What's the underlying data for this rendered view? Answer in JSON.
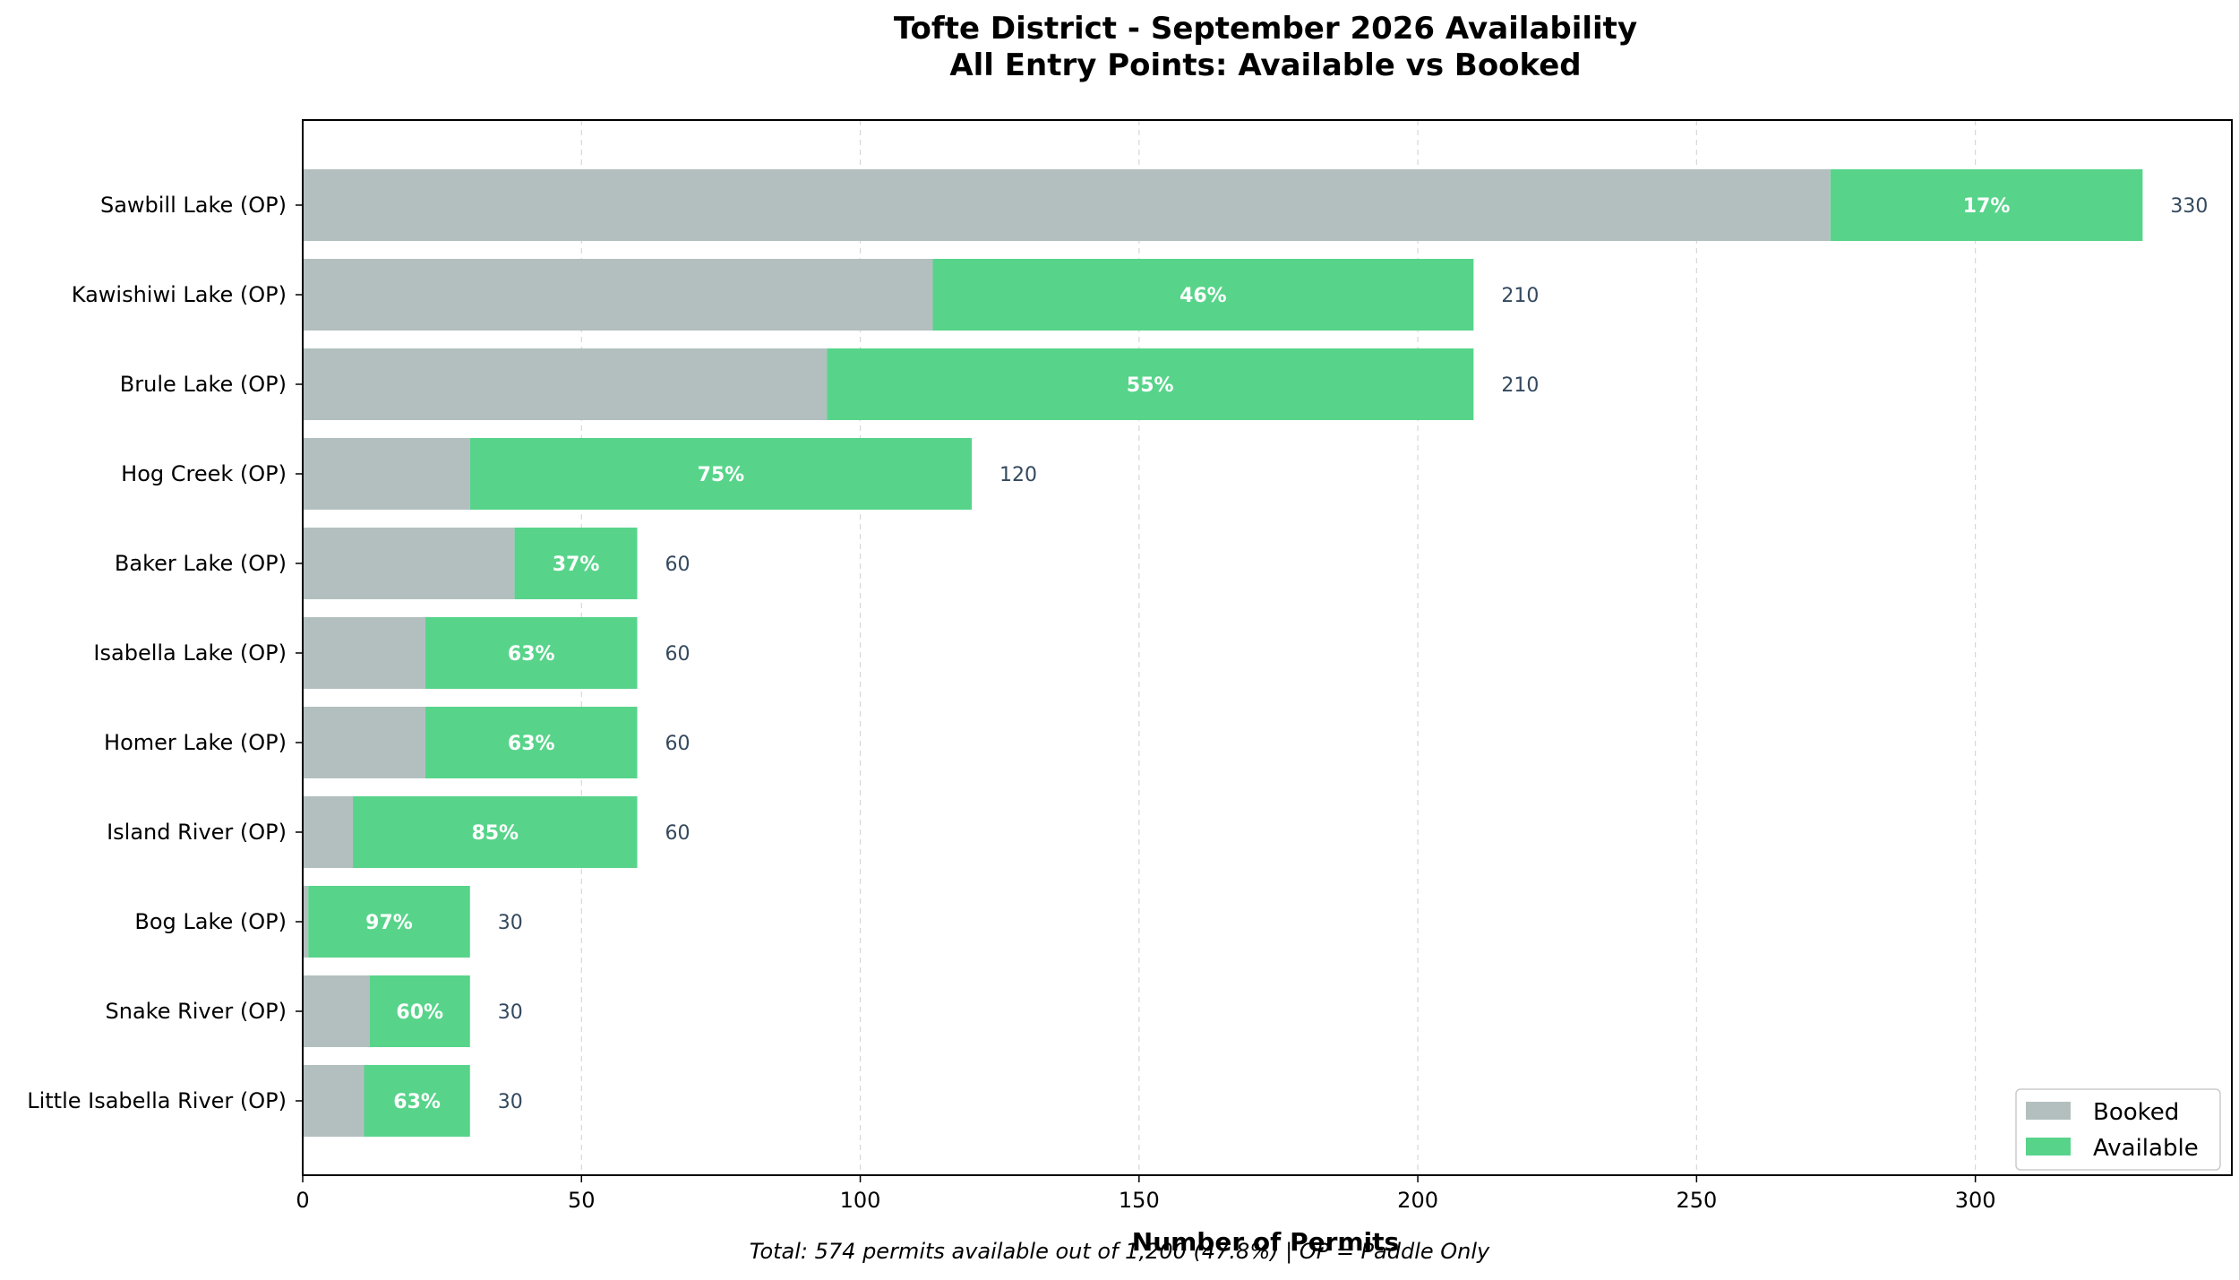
{
  "chart_data": {
    "type": "bar",
    "orientation": "horizontal",
    "stacked": true,
    "title": "Tofte District - September 2026 Availability",
    "subtitle": "All Entry Points: Available vs Booked",
    "xlabel": "Number of Permits",
    "ylabel": "",
    "xlim": [
      0,
      346
    ],
    "xticks": [
      0,
      50,
      100,
      150,
      200,
      250,
      300
    ],
    "grid": "x-dashed",
    "legend_position": "bottom-right",
    "categories": [
      "Sawbill Lake (OP)",
      "Kawishiwi Lake (OP)",
      "Brule Lake (OP)",
      "Hog Creek (OP)",
      "Baker Lake (OP)",
      "Isabella Lake (OP)",
      "Homer Lake (OP)",
      "Island River (OP)",
      "Bog Lake (OP)",
      "Snake River (OP)",
      "Little Isabella River (OP)"
    ],
    "series": [
      {
        "name": "Booked",
        "color": "#b3bfbf",
        "values": [
          274,
          113,
          94,
          30,
          38,
          22,
          22,
          9,
          1,
          12,
          11
        ]
      },
      {
        "name": "Available",
        "color": "#57d48a",
        "values": [
          56,
          97,
          116,
          90,
          22,
          38,
          38,
          51,
          29,
          18,
          19
        ]
      }
    ],
    "totals": [
      330,
      210,
      210,
      120,
      60,
      60,
      60,
      60,
      30,
      30,
      30
    ],
    "available_pct_labels": [
      "17%",
      "46%",
      "55%",
      "75%",
      "37%",
      "63%",
      "63%",
      "85%",
      "97%",
      "60%",
      "63%"
    ],
    "total_labels": [
      "330",
      "210",
      "210",
      "120",
      "60",
      "60",
      "60",
      "60",
      "30",
      "30",
      "30"
    ],
    "footnote": "Total: 574 permits available out of 1,200 (47.8%) | OP = Paddle Only"
  }
}
